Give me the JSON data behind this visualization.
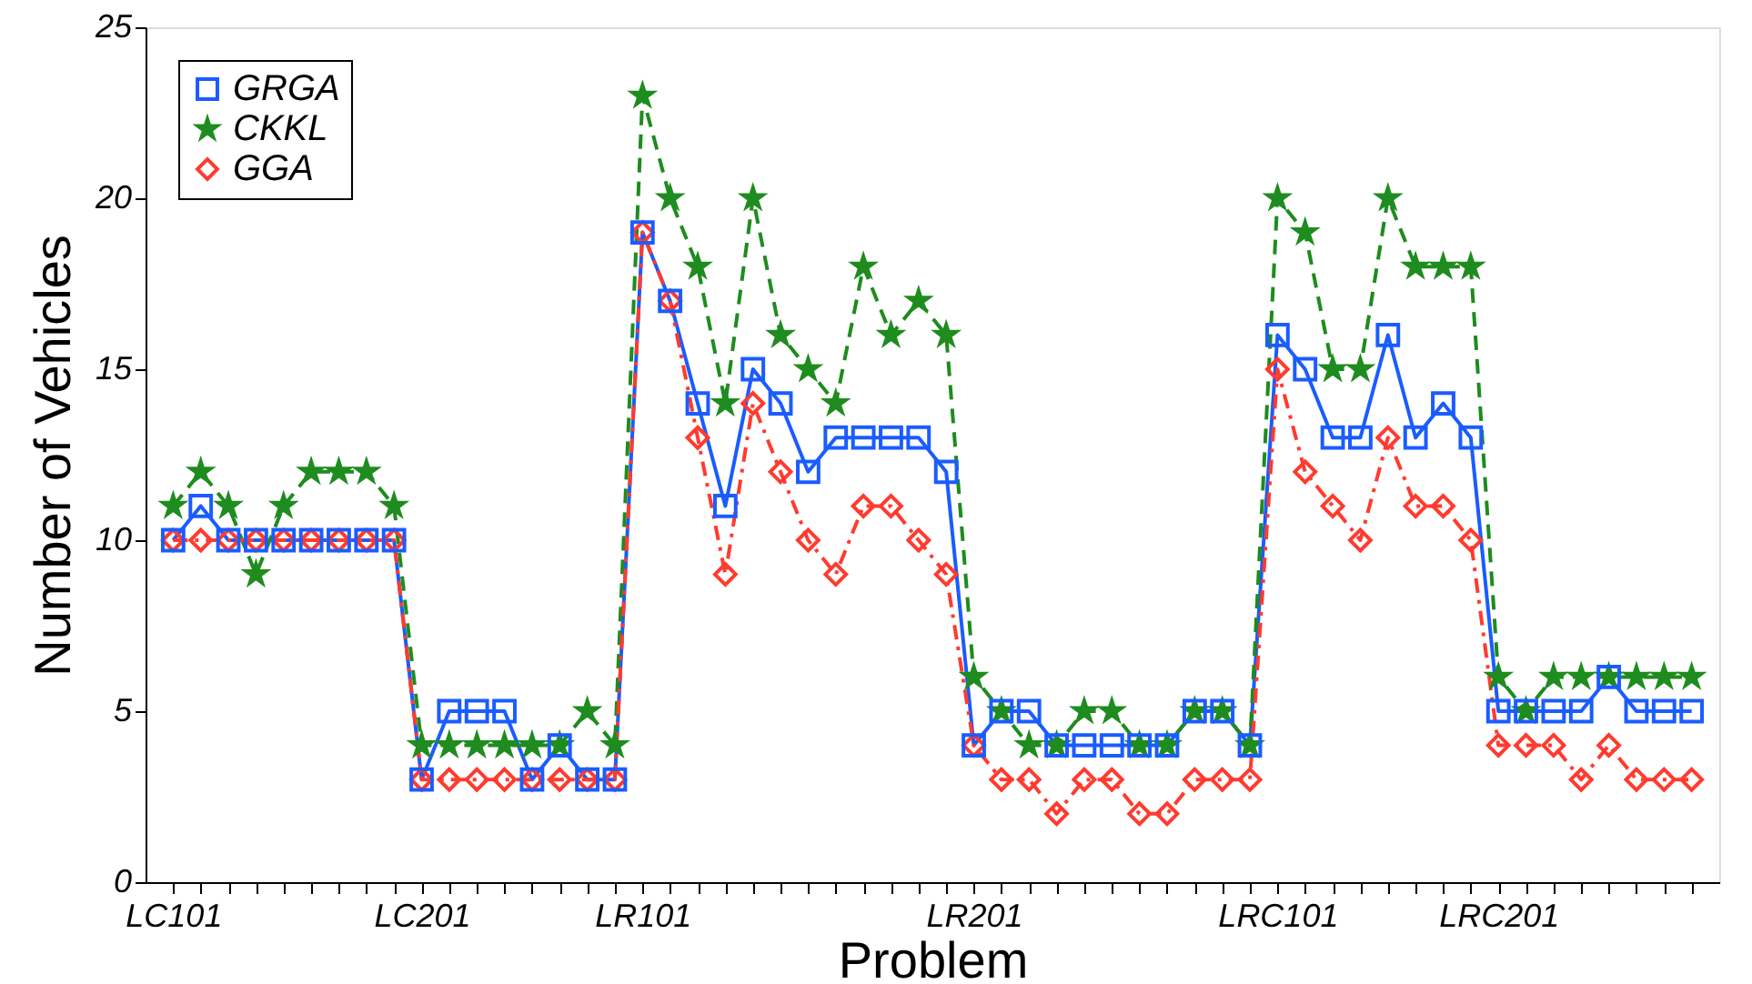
{
  "chart_data": {
    "type": "line",
    "xlabel": "Problem",
    "ylabel": "Number of Vehicles",
    "categories": [
      "LC101",
      null,
      null,
      null,
      null,
      null,
      null,
      null,
      null,
      "LC201",
      null,
      null,
      null,
      null,
      null,
      null,
      null,
      "LR101",
      null,
      null,
      null,
      null,
      null,
      null,
      null,
      null,
      null,
      null,
      null,
      "LR201",
      null,
      null,
      null,
      null,
      null,
      null,
      null,
      null,
      null,
      null,
      "LRC101",
      null,
      null,
      null,
      null,
      null,
      null,
      null,
      "LRC201",
      null,
      null,
      null,
      null,
      null,
      null,
      null
    ],
    "ylim": [
      0,
      25
    ],
    "yticks": [
      0,
      5,
      10,
      15,
      20,
      25
    ],
    "grid": false,
    "legend": "top left",
    "series": [
      {
        "name": "GRGA",
        "color": "#1a5cff",
        "marker": "square",
        "line_style": "solid",
        "values": [
          10,
          11,
          10,
          10,
          10,
          10,
          10,
          10,
          10,
          3,
          5,
          5,
          5,
          3,
          4,
          3,
          3,
          19,
          17,
          14,
          11,
          15,
          14,
          12,
          13,
          13,
          13,
          13,
          12,
          4,
          5,
          5,
          4,
          4,
          4,
          4,
          4,
          5,
          5,
          4,
          16,
          15,
          13,
          13,
          16,
          13,
          14,
          13,
          5,
          5,
          5,
          5,
          6,
          5,
          5,
          5
        ]
      },
      {
        "name": "CKKL",
        "color": "#1e8c1e",
        "marker": "star",
        "line_style": "dashed",
        "values": [
          11,
          12,
          11,
          9,
          11,
          12,
          12,
          12,
          11,
          4,
          4,
          4,
          4,
          4,
          4,
          5,
          4,
          23,
          20,
          18,
          14,
          20,
          16,
          15,
          14,
          18,
          16,
          17,
          16,
          6,
          5,
          4,
          4,
          5,
          5,
          4,
          4,
          5,
          5,
          4,
          20,
          19,
          15,
          15,
          20,
          18,
          18,
          18,
          6,
          5,
          6,
          6,
          6,
          6,
          6,
          6
        ]
      },
      {
        "name": "GGA",
        "color": "#ff3b2f",
        "marker": "diamond",
        "line_style": "dashdot",
        "values": [
          10,
          10,
          10,
          10,
          10,
          10,
          10,
          10,
          10,
          3,
          3,
          3,
          3,
          3,
          3,
          3,
          3,
          19,
          17,
          13,
          9,
          14,
          12,
          10,
          9,
          11,
          11,
          10,
          9,
          4,
          3,
          3,
          2,
          3,
          3,
          2,
          2,
          3,
          3,
          3,
          15,
          12,
          11,
          10,
          13,
          11,
          11,
          10,
          4,
          4,
          4,
          3,
          4,
          3,
          3,
          3
        ]
      }
    ]
  }
}
